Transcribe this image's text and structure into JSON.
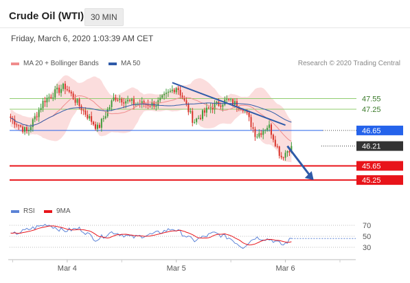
{
  "header": {
    "title": "Crude Oil (WTI)",
    "timeframe": "30 MIN",
    "timestamp": "Friday, March 6, 2020 1:03:39 AM CET",
    "credit": "Research © 2020 Trading Central"
  },
  "legend": {
    "ma20": "MA 20 + Bollinger Bands",
    "ma50": "MA 50",
    "rsi": "RSI",
    "ma9": "9MA"
  },
  "colors": {
    "bull": "#3f9b3a",
    "bear": "#d9342b",
    "band": "#f9cfcf",
    "ma20": "#f08c8c",
    "ma50": "#2e5aa8",
    "support": "#e8141a",
    "resistance": "#8fcc6e",
    "pivot": "#2563eb",
    "current": "#333333",
    "rsi": "#5b82d6",
    "rsi_ma": "#e8141a"
  },
  "chart_data": [
    {
      "type": "candlestick",
      "title": "Crude Oil (WTI)",
      "timeframe": "30 MIN",
      "x_labels": [
        "Mar 4",
        "Mar 5",
        "Mar 6"
      ],
      "ylim": [
        45.0,
        48.2
      ],
      "levels": [
        {
          "value": 47.55,
          "label": "47.55",
          "kind": "resistance"
        },
        {
          "value": 47.25,
          "label": "47.25",
          "kind": "resistance"
        },
        {
          "value": 46.65,
          "label": "46.65",
          "kind": "pivot"
        },
        {
          "value": 46.21,
          "label": "46.21",
          "kind": "current"
        },
        {
          "value": 45.65,
          "label": "45.65",
          "kind": "support"
        },
        {
          "value": 45.25,
          "label": "45.25",
          "kind": "support"
        }
      ],
      "series": [
        {
          "name": "MA 20 + Bollinger Bands",
          "kind": "bollinger"
        },
        {
          "name": "MA 50",
          "kind": "ma"
        }
      ],
      "key_points": [
        {
          "x": 0,
          "y": 47.0
        },
        {
          "x": 8,
          "y": 46.6
        },
        {
          "x": 16,
          "y": 47.5
        },
        {
          "x": 26,
          "y": 47.9
        },
        {
          "x": 35,
          "y": 47.2
        },
        {
          "x": 42,
          "y": 46.7
        },
        {
          "x": 50,
          "y": 47.6
        },
        {
          "x": 60,
          "y": 47.4
        },
        {
          "x": 70,
          "y": 47.4
        },
        {
          "x": 80,
          "y": 47.9
        },
        {
          "x": 88,
          "y": 46.9
        },
        {
          "x": 96,
          "y": 47.3
        },
        {
          "x": 104,
          "y": 47.5
        },
        {
          "x": 112,
          "y": 47.3
        },
        {
          "x": 118,
          "y": 46.5
        },
        {
          "x": 124,
          "y": 46.8
        },
        {
          "x": 130,
          "y": 45.9
        },
        {
          "x": 135,
          "y": 46.2
        }
      ],
      "trendline": {
        "start": {
          "x": 80,
          "y": 48.0
        },
        "end": {
          "x": 136,
          "y": 46.8
        }
      },
      "projection": {
        "start": {
          "x": 137,
          "y": 46.21
        },
        "end": {
          "x": 150,
          "y": 45.25
        }
      }
    },
    {
      "type": "line",
      "title": "RSI",
      "series": [
        {
          "name": "RSI"
        },
        {
          "name": "9MA"
        }
      ],
      "levels": [
        70,
        50,
        30
      ],
      "ylim": [
        15,
        80
      ],
      "key_points": [
        {
          "x": 0,
          "y": 52
        },
        {
          "x": 10,
          "y": 64
        },
        {
          "x": 18,
          "y": 72
        },
        {
          "x": 26,
          "y": 60
        },
        {
          "x": 34,
          "y": 64
        },
        {
          "x": 42,
          "y": 44
        },
        {
          "x": 50,
          "y": 58
        },
        {
          "x": 60,
          "y": 48
        },
        {
          "x": 70,
          "y": 54
        },
        {
          "x": 80,
          "y": 64
        },
        {
          "x": 90,
          "y": 42
        },
        {
          "x": 100,
          "y": 56
        },
        {
          "x": 108,
          "y": 46
        },
        {
          "x": 114,
          "y": 30
        },
        {
          "x": 120,
          "y": 48
        },
        {
          "x": 128,
          "y": 44
        },
        {
          "x": 134,
          "y": 34
        },
        {
          "x": 138,
          "y": 46
        }
      ]
    }
  ]
}
